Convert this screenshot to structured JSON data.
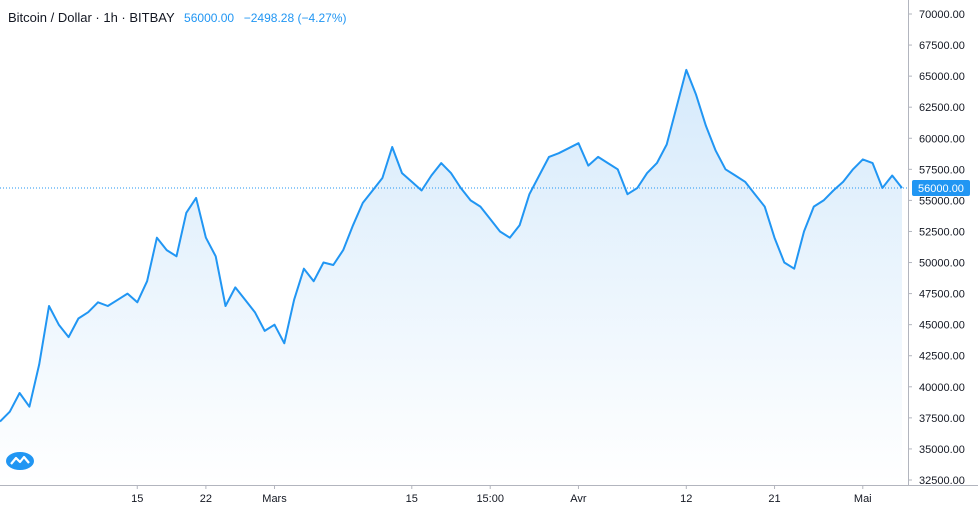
{
  "header": {
    "symbol": "Bitcoin / Dollar · 1h · BITBAY",
    "last": "56000.00",
    "change": "−2498.28 (−4.27%)"
  },
  "logo_icon": "tradingview-logo-icon",
  "colors": {
    "line": "#2196f3",
    "area_top": "#d6eafb",
    "area_bottom": "#ffffff",
    "axis": "#b2b5be",
    "text": "#131722"
  },
  "chart_data": {
    "type": "area",
    "ylim": [
      32500,
      71000
    ],
    "yticks": [
      32500,
      35000,
      37500,
      40000,
      42500,
      45000,
      47500,
      50000,
      52500,
      55000,
      57500,
      60000,
      62500,
      65000,
      67500,
      70000
    ],
    "ytick_labels": [
      "32500.00",
      "35000.00",
      "37500.00",
      "40000.00",
      "42500.00",
      "45000.00",
      "47500.00",
      "50000.00",
      "52500.00",
      "55000.00",
      "57500.00",
      "60000.00",
      "62500.00",
      "65000.00",
      "67500.00",
      "70000.00"
    ],
    "xlim": [
      0,
      92
    ],
    "xticks": [
      {
        "pos": 14,
        "label": "15"
      },
      {
        "pos": 21,
        "label": "22"
      },
      {
        "pos": 28,
        "label": "Mars"
      },
      {
        "pos": 42,
        "label": "15"
      },
      {
        "pos": 50,
        "label": "15:00"
      },
      {
        "pos": 59,
        "label": "Avr"
      },
      {
        "pos": 70,
        "label": "12"
      },
      {
        "pos": 79,
        "label": "21"
      },
      {
        "pos": 88,
        "label": "Mai"
      }
    ],
    "last_price": 56000,
    "last_price_label": "56000.00",
    "series": [
      {
        "x": [
          0,
          1,
          2,
          3,
          4,
          5,
          6,
          7,
          8,
          9,
          10,
          11,
          12,
          13,
          14,
          15,
          16,
          17,
          18,
          19,
          20,
          21,
          22,
          23,
          24,
          25,
          26,
          27,
          28,
          29,
          30,
          31,
          32,
          33,
          34,
          35,
          36,
          37,
          38,
          39,
          40,
          41,
          42,
          43,
          44,
          45,
          46,
          47,
          48,
          49,
          50,
          51,
          52,
          53,
          54,
          55,
          56,
          57,
          58,
          59,
          60,
          61,
          62,
          63,
          64,
          65,
          66,
          67,
          68,
          69,
          70,
          71,
          72,
          73,
          74,
          75,
          76,
          77,
          78,
          79,
          80,
          81,
          82,
          83,
          84,
          85,
          86,
          87,
          88,
          89,
          90,
          91,
          92
        ],
        "y": [
          37200,
          38000,
          39500,
          38400,
          41800,
          46500,
          45000,
          44000,
          45500,
          46000,
          46800,
          46500,
          47000,
          47500,
          46800,
          48500,
          52000,
          51000,
          50500,
          54000,
          55200,
          52000,
          50500,
          46500,
          48000,
          47000,
          46000,
          44500,
          45000,
          43500,
          47000,
          49500,
          48500,
          50000,
          49800,
          51000,
          53000,
          54800,
          55800,
          56800,
          59300,
          57200,
          56500,
          55800,
          57000,
          58000,
          57200,
          56000,
          55000,
          54500,
          53500,
          52500,
          52000,
          53000,
          55500,
          57000,
          58500,
          58800,
          59200,
          59600,
          57800,
          58500,
          58000,
          57500,
          55500,
          56000,
          57200,
          58000,
          59500,
          62500,
          65500,
          63500,
          61000,
          59000,
          57500,
          57000,
          56500,
          55500,
          54500,
          52000,
          50000,
          49500,
          52500,
          54500,
          55000,
          55800,
          56500,
          57500,
          58300,
          58000,
          56000,
          57000,
          56000
        ]
      }
    ]
  }
}
